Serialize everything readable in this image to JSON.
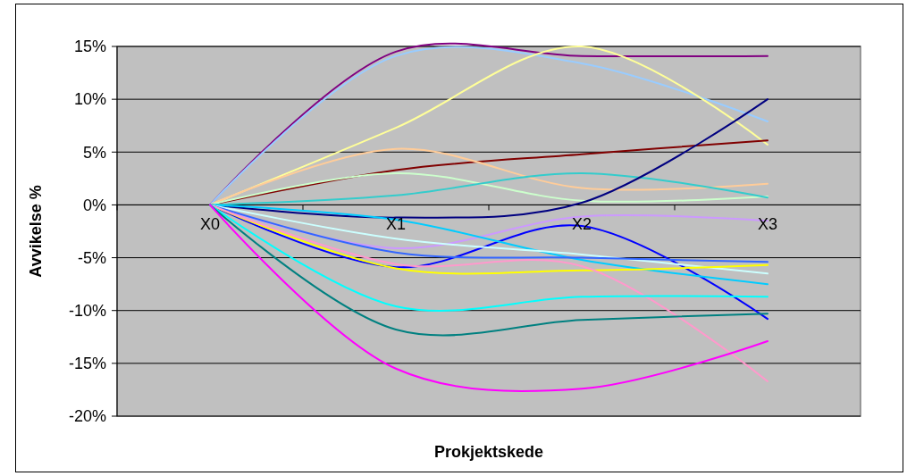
{
  "chart_data": {
    "type": "line",
    "xlabel": "Prokjektskede",
    "ylabel": "Avvikelse %",
    "categories": [
      "X0",
      "X1",
      "X2",
      "X3"
    ],
    "ylim": [
      -20,
      15
    ],
    "yticks": [
      {
        "value": -20,
        "label": "-20%"
      },
      {
        "value": -15,
        "label": "-15%"
      },
      {
        "value": -10,
        "label": "-10%"
      },
      {
        "value": -5,
        "label": "-5%"
      },
      {
        "value": 0,
        "label": "0%"
      },
      {
        "value": 5,
        "label": "5%"
      },
      {
        "value": 10,
        "label": "10%"
      },
      {
        "value": 15,
        "label": "15%"
      }
    ],
    "grid": "y",
    "marker": "none",
    "line_style": "solid",
    "series": [
      {
        "color": "#800080",
        "values": [
          0,
          14.5,
          14.1,
          14.1
        ]
      },
      {
        "color": "#99ccff",
        "values": [
          0,
          14.1,
          13.4,
          7.9
        ]
      },
      {
        "color": "#ffff99",
        "values": [
          0,
          7.3,
          15,
          5.7
        ]
      },
      {
        "color": "#800000",
        "values": [
          0,
          3.3,
          4.8,
          6.1
        ]
      },
      {
        "color": "#ffcc99",
        "values": [
          0,
          5.3,
          1.6,
          2.0
        ]
      },
      {
        "color": "#ccffcc",
        "values": [
          0,
          3.0,
          0.4,
          0.8
        ]
      },
      {
        "color": "#33cccc",
        "values": [
          0,
          0.9,
          3.0,
          0.7
        ]
      },
      {
        "color": "#000080",
        "values": [
          0,
          -1.2,
          0.2,
          10.0
        ]
      },
      {
        "color": "#cc99ff",
        "values": [
          0,
          -4.1,
          -1.1,
          -1.5
        ]
      },
      {
        "color": "#0000ff",
        "values": [
          0,
          -5.9,
          -2.0,
          -10.8
        ]
      },
      {
        "color": "#00ccff",
        "values": [
          0,
          -1.4,
          -5.2,
          -7.5
        ]
      },
      {
        "color": "#ccffff",
        "values": [
          0,
          -3.2,
          -4.7,
          -6.5
        ]
      },
      {
        "color": "#3366ff",
        "values": [
          0,
          -4.5,
          -5.0,
          -5.4
        ]
      },
      {
        "color": "#ffff00",
        "values": [
          0,
          -6.0,
          -6.2,
          -5.7
        ]
      },
      {
        "color": "#ff99cc",
        "values": [
          0,
          -5.6,
          -5.8,
          -16.7
        ]
      },
      {
        "color": "#00ffff",
        "values": [
          0,
          -9.6,
          -8.7,
          -8.7
        ]
      },
      {
        "color": "#008080",
        "values": [
          0,
          -11.8,
          -10.9,
          -10.3
        ]
      },
      {
        "color": "#ff00ff",
        "values": [
          0,
          -15.5,
          -17.4,
          -12.9
        ]
      }
    ]
  }
}
